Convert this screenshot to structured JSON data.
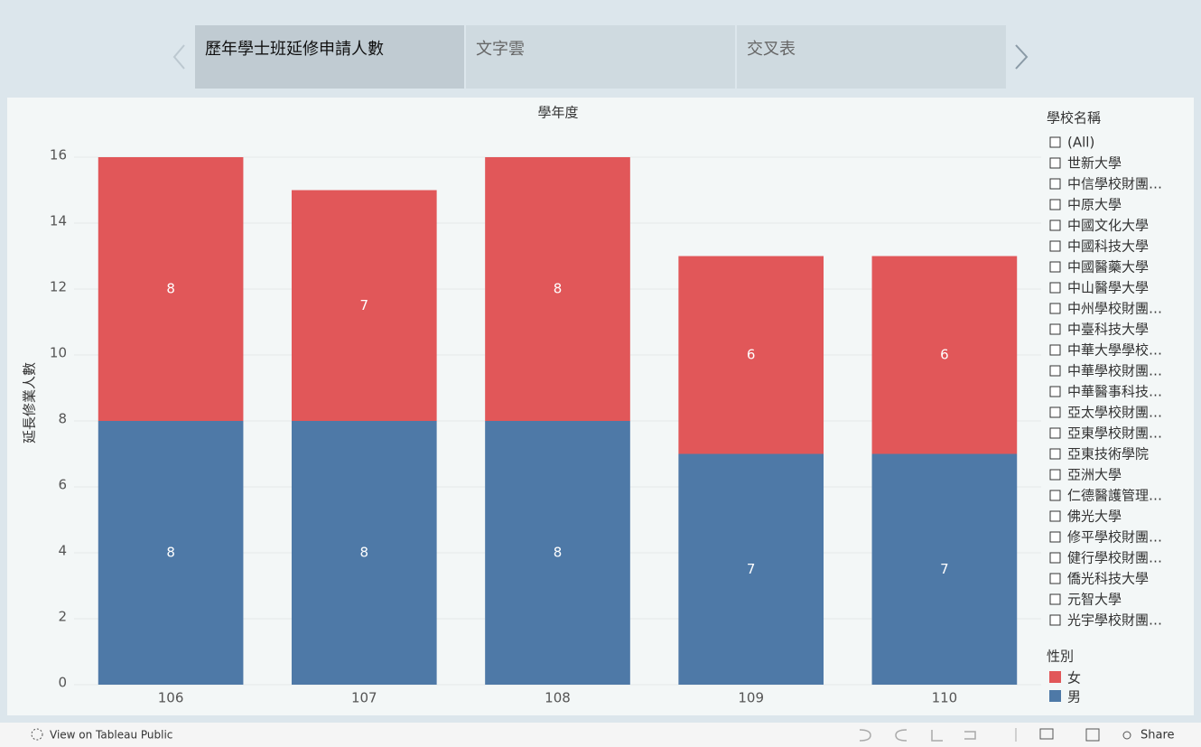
{
  "tabs": [
    "歷年學士班延修申請人數",
    "文字雲",
    "交叉表"
  ],
  "chart_data": {
    "type": "bar",
    "stacked": true,
    "title": "學年度",
    "ylabel": "延長修業人數",
    "categories": [
      "106",
      "107",
      "108",
      "109",
      "110"
    ],
    "series": [
      {
        "name": "男",
        "color": "#4e79a7",
        "values": [
          8,
          8,
          8,
          7,
          7
        ]
      },
      {
        "name": "女",
        "color": "#e15759",
        "values": [
          8,
          7,
          8,
          6,
          6
        ]
      }
    ],
    "ylim": [
      0,
      16
    ],
    "yticks": [
      0,
      2,
      4,
      6,
      8,
      10,
      12,
      14,
      16
    ],
    "grid": true,
    "legend_title": "性別"
  },
  "filter": {
    "title": "學校名稱",
    "items": [
      "(All)",
      "世新大學",
      "中信學校財團…",
      "中原大學",
      "中國文化大學",
      "中國科技大學",
      "中國醫藥大學",
      "中山醫學大學",
      "中州學校財團…",
      "中臺科技大學",
      "中華大學學校…",
      "中華學校財團…",
      "中華醫事科技…",
      "亞太學校財團…",
      "亞東學校財團…",
      "亞東技術學院",
      "亞洲大學",
      "仁德醫護管理…",
      "佛光大學",
      "修平學校財團…",
      "健行學校財團…",
      "僑光科技大學",
      "元智大學",
      "光宇學校財團…"
    ]
  },
  "toolbar": {
    "view": "View on Tableau Public",
    "share": "Share"
  }
}
